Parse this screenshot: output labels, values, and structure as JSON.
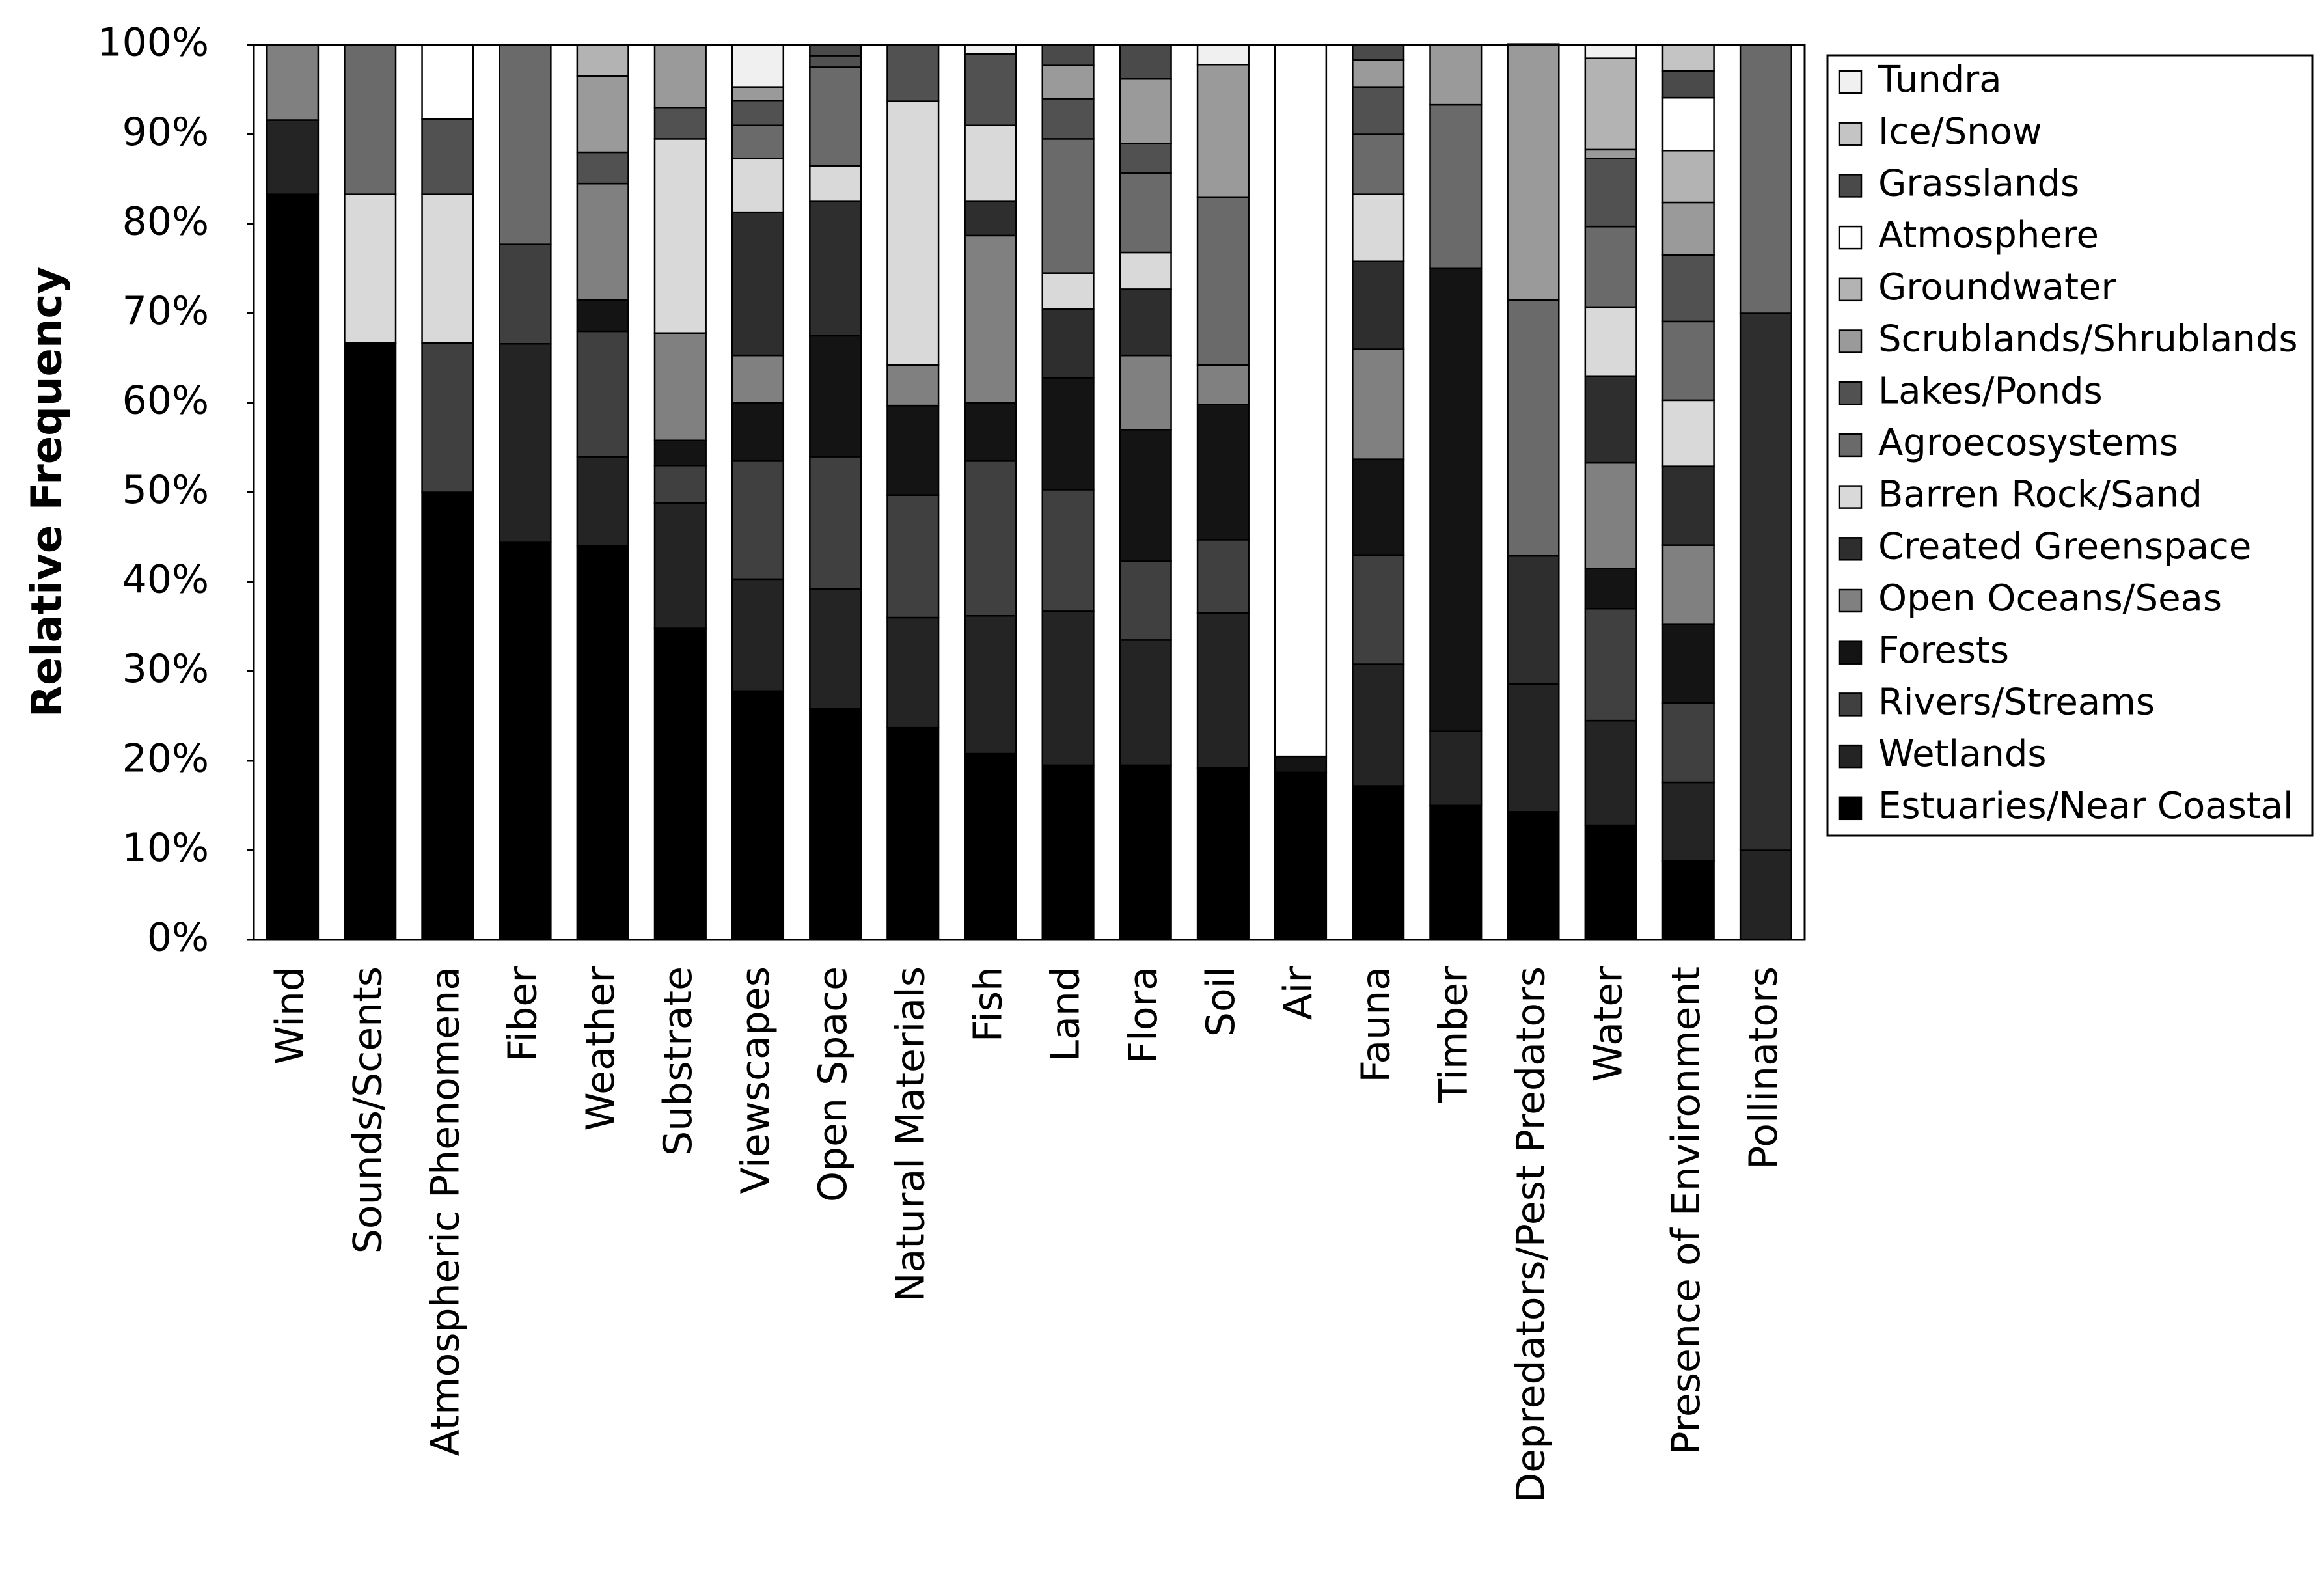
{
  "chart_data": {
    "type": "stacked_bar",
    "ylabel": "Relative Frequency",
    "categories": [
      "Wind",
      "Sounds/Scents",
      "Atmospheric Phenomena",
      "Fiber",
      "Weather",
      "Substrate",
      "Viewscapes",
      "Open Space",
      "Natural Materials",
      "Fish",
      "Land",
      "Flora",
      "Soil",
      "Air",
      "Fauna",
      "Timber",
      "Depredators/Pest Predators",
      "Water",
      "Presence of Environment",
      "Pollinators"
    ],
    "series": [
      {
        "name": "Estuaries/Near Coastal",
        "color": "#000000",
        "values": [
          83.3,
          66.7,
          50,
          44.4,
          44,
          34.8,
          27.8,
          25.8,
          23.7,
          20.8,
          19.5,
          19.5,
          19.2,
          18.7,
          17.2,
          15,
          14.3,
          12.8,
          8.8,
          0
        ]
      },
      {
        "name": "Wetlands",
        "color": "#242424",
        "values": [
          8.3,
          0,
          0,
          22.2,
          10,
          14,
          12.5,
          13.4,
          12.3,
          15.4,
          17.2,
          14,
          17.3,
          0,
          13.6,
          8.3,
          14.3,
          11.7,
          8.8,
          10
        ]
      },
      {
        "name": "Rivers/Streams",
        "color": "#404040",
        "values": [
          0,
          0,
          16.7,
          11.1,
          14,
          4.2,
          13.2,
          14.8,
          13.7,
          17.3,
          13.6,
          8.8,
          8.2,
          0,
          12.2,
          0,
          0,
          12.5,
          8.9,
          0
        ]
      },
      {
        "name": "Forests",
        "color": "#141414",
        "values": [
          0,
          0,
          0,
          0,
          3.5,
          2.8,
          6.5,
          13.5,
          10,
          6.5,
          12.5,
          14.7,
          15.1,
          1.8,
          10.7,
          51.7,
          0,
          4.5,
          8.8,
          0
        ]
      },
      {
        "name": "Open Oceans/Seas",
        "color": "#808080",
        "values": [
          8.4,
          0,
          0,
          0,
          13,
          12,
          5.3,
          0,
          4.5,
          18.7,
          0,
          8.3,
          4.4,
          0,
          12.3,
          0,
          0,
          11.8,
          8.8,
          0
        ]
      },
      {
        "name": "Created Greenspace",
        "color": "#2e2e2e",
        "values": [
          0,
          0,
          0,
          0,
          0,
          0,
          16,
          15,
          0,
          3.8,
          7.7,
          7.4,
          0,
          0,
          9.8,
          0,
          14.3,
          9.7,
          8.8,
          60
        ]
      },
      {
        "name": "Barren Rock/Sand",
        "color": "#d9d9d9",
        "values": [
          0,
          16.6,
          16.6,
          0,
          0,
          21.7,
          6,
          4,
          29.5,
          8.5,
          4,
          4.1,
          0,
          0,
          7.5,
          0,
          0,
          7.7,
          7.4,
          0
        ]
      },
      {
        "name": "Agroecosystems",
        "color": "#6a6a6a",
        "values": [
          0,
          16.7,
          0,
          22.3,
          0,
          0,
          3.7,
          11,
          0,
          0,
          15,
          8.9,
          18.8,
          0,
          6.7,
          18.3,
          28.6,
          9,
          8.8,
          30
        ]
      },
      {
        "name": "Lakes/Ponds",
        "color": "#515151",
        "values": [
          0,
          0,
          8.4,
          0,
          3.5,
          3.5,
          2.8,
          1.3,
          6.3,
          8,
          4.5,
          3.3,
          0,
          0,
          5.3,
          0,
          0,
          7.6,
          7.4,
          0
        ]
      },
      {
        "name": "Scrublands/Shrublands",
        "color": "#9a9a9a",
        "values": [
          0,
          0,
          0,
          0,
          8.5,
          7,
          1.5,
          0,
          0,
          0,
          3.7,
          7.2,
          14.8,
          0,
          3,
          6.7,
          28.6,
          1,
          5.9,
          0
        ]
      },
      {
        "name": "Groundwater",
        "color": "#b3b3b3",
        "values": [
          0,
          0,
          0,
          0,
          3.5,
          0,
          0,
          0,
          0,
          0,
          0,
          0,
          0,
          0,
          0,
          0,
          0,
          10.2,
          5.8,
          0
        ]
      },
      {
        "name": "Atmosphere",
        "color": "#ffffff",
        "values": [
          0,
          0,
          8.3,
          0,
          0,
          0,
          0,
          0,
          0,
          0,
          0,
          0,
          0,
          79.5,
          0,
          0,
          0,
          0,
          5.9,
          0
        ]
      },
      {
        "name": "Grasslands",
        "color": "#4a4a4a",
        "values": [
          0,
          0,
          0,
          0,
          0,
          0,
          0,
          1.2,
          0,
          0,
          2.3,
          3.8,
          0,
          0,
          1.7,
          0,
          0,
          0,
          3,
          0
        ]
      },
      {
        "name": "Ice/Snow",
        "color": "#c4c4c4",
        "values": [
          0,
          0,
          0,
          0,
          0,
          0,
          0,
          0,
          0,
          0,
          0,
          0,
          0,
          0,
          0,
          0,
          0,
          0,
          2.9,
          0
        ]
      },
      {
        "name": "Tundra",
        "color": "#f0f0f0",
        "values": [
          0,
          0,
          0,
          0,
          0,
          0,
          4.7,
          0,
          0,
          1,
          0,
          0,
          2.2,
          0,
          0,
          0,
          0,
          1.5,
          0,
          0
        ]
      }
    ],
    "ylim": [
      0,
      100
    ],
    "yticks": [
      {
        "value": 0,
        "label": "0%"
      },
      {
        "value": 10,
        "label": "10%"
      },
      {
        "value": 20,
        "label": "20%"
      },
      {
        "value": 30,
        "label": "30%"
      },
      {
        "value": 40,
        "label": "40%"
      },
      {
        "value": 50,
        "label": "50%"
      },
      {
        "value": 60,
        "label": "60%"
      },
      {
        "value": 70,
        "label": "70%"
      },
      {
        "value": 80,
        "label": "80%"
      },
      {
        "value": 90,
        "label": "90%"
      },
      {
        "value": 100,
        "label": "100%"
      }
    ],
    "legend": "right"
  }
}
